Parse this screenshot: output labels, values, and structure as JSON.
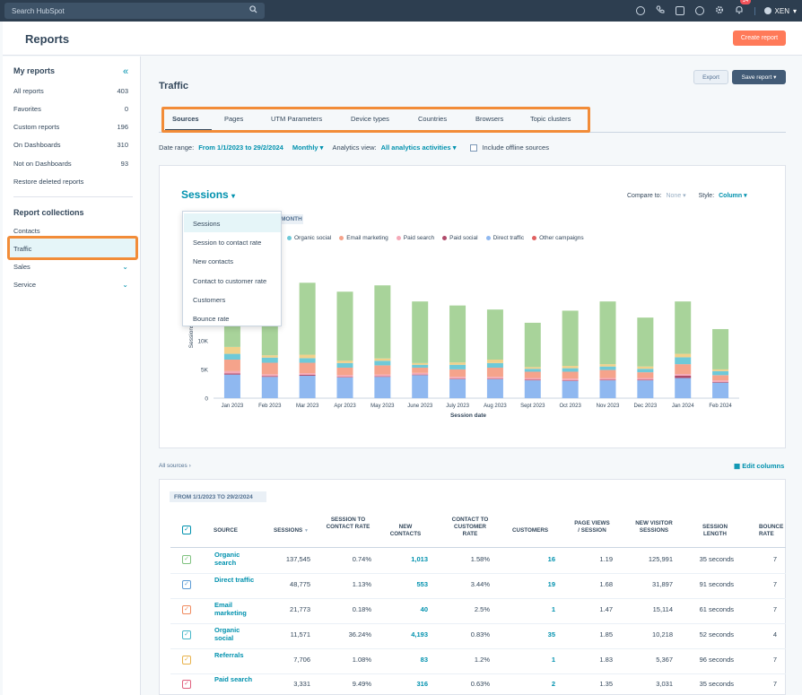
{
  "topnav": {
    "search_placeholder": "Search HubSpot",
    "notifications_count": "14",
    "account_name": "XEN"
  },
  "header": {
    "title": "Reports",
    "create_label": "Create report"
  },
  "sidebar": {
    "my_reports_title": "My reports",
    "items": [
      {
        "label": "All reports",
        "count": "403"
      },
      {
        "label": "Favorites",
        "count": "0"
      },
      {
        "label": "Custom reports",
        "count": "196"
      },
      {
        "label": "On Dashboards",
        "count": "310"
      },
      {
        "label": "Not on Dashboards",
        "count": "93"
      },
      {
        "label": "Restore deleted reports",
        "count": ""
      }
    ],
    "collections_title": "Report collections",
    "collections": [
      {
        "label": "Contacts"
      },
      {
        "label": "Traffic"
      },
      {
        "label": "Sales"
      },
      {
        "label": "Service"
      }
    ]
  },
  "main": {
    "title": "Traffic",
    "export_label": "Export",
    "save_label": "Save report",
    "tabs": [
      "Sources",
      "Pages",
      "UTM Parameters",
      "Device types",
      "Countries",
      "Browsers",
      "Topic clusters"
    ],
    "filters": {
      "date_range_label": "Date range:",
      "date_range_value": "From 1/1/2023 to 29/2/2024",
      "frequency": "Monthly",
      "analytics_label": "Analytics view:",
      "analytics_value": "All analytics activities",
      "offline_label": "Include offline sources"
    }
  },
  "chart_controls": {
    "metric": "Sessions",
    "compare_label": "Compare to:",
    "compare_value": "None",
    "style_label": "Style:",
    "style_value": "Column",
    "period_chip": "MONTH",
    "dropdown_options": [
      "Sessions",
      "Session to contact rate",
      "New contacts",
      "Contact to customer rate",
      "Customers",
      "Bounce rate"
    ]
  },
  "chart_data": {
    "type": "bar",
    "stacked": true,
    "xlabel": "Session date",
    "ylabel": "Sessions",
    "yticks": [
      "0",
      "5K",
      "10K"
    ],
    "ylim": [
      0,
      21500
    ],
    "categories": [
      "Jan 2023",
      "Feb 2023",
      "Mar 2023",
      "Apr 2023",
      "May 2023",
      "June 2023",
      "July 2023",
      "Aug 2023",
      "Sept 2023",
      "Oct 2023",
      "Nov 2023",
      "Dec 2023",
      "Jan 2024",
      "Feb 2024"
    ],
    "series": [
      {
        "name": "Direct traffic",
        "color": "#8fb8f0",
        "values": [
          4100,
          3700,
          3900,
          3600,
          3700,
          4000,
          3300,
          3300,
          3100,
          3000,
          3100,
          3100,
          3500,
          2700
        ]
      },
      {
        "name": "Paid social",
        "color": "#b04a6a",
        "values": [
          200,
          150,
          150,
          100,
          100,
          100,
          100,
          100,
          100,
          100,
          100,
          100,
          400,
          100
        ]
      },
      {
        "name": "Paid search",
        "color": "#f5a9b8",
        "values": [
          400,
          300,
          300,
          300,
          300,
          300,
          300,
          300,
          300,
          300,
          300,
          300,
          300,
          300
        ]
      },
      {
        "name": "Email marketing",
        "color": "#f5a38b",
        "values": [
          2000,
          2000,
          1800,
          1300,
          1600,
          900,
          1300,
          1600,
          1100,
          1200,
          1400,
          1000,
          1700,
          900
        ]
      },
      {
        "name": "Organic social",
        "color": "#6ec9d8",
        "values": [
          1000,
          900,
          800,
          800,
          800,
          500,
          800,
          800,
          500,
          600,
          600,
          600,
          1200,
          700
        ]
      },
      {
        "name": "Other campaigns",
        "color": "#f1d08a",
        "values": [
          1200,
          400,
          600,
          400,
          400,
          300,
          400,
          600,
          300,
          400,
          400,
          400,
          600,
          300
        ]
      },
      {
        "name": "Organic search",
        "color": "#a8d39a",
        "values": [
          6400,
          11500,
          12500,
          12000,
          12700,
          10700,
          9900,
          8700,
          7700,
          9600,
          10900,
          8500,
          9100,
          7000
        ]
      }
    ]
  },
  "table": {
    "all_sources": "All sources",
    "edit_columns": "Edit columns",
    "range_chip": "FROM 1/1/2023 TO 29/2/2024",
    "headers": [
      "SOURCE",
      "SESSIONS",
      "SESSION TO CONTACT RATE",
      "NEW CONTACTS",
      "CONTACT TO CUSTOMER RATE",
      "CUSTOMERS",
      "PAGE VIEWS / SESSION",
      "NEW VISITOR SESSIONS",
      "SESSION LENGTH",
      "BOUNCE RATE"
    ],
    "rows": [
      {
        "source": "Organic search",
        "color": "#7fc27f",
        "sessions": "137,545",
        "s2c": "0.74%",
        "new_contacts": "1,013",
        "c2c": "1.58%",
        "customers": "16",
        "pvs": "1.19",
        "nvs": "125,991",
        "length": "35 seconds",
        "bounce": "7"
      },
      {
        "source": "Direct traffic",
        "color": "#5b9bd5",
        "sessions": "48,775",
        "s2c": "1.13%",
        "new_contacts": "553",
        "c2c": "3.44%",
        "customers": "19",
        "pvs": "1.68",
        "nvs": "31,897",
        "length": "91 seconds",
        "bounce": "7"
      },
      {
        "source": "Email marketing",
        "color": "#f08a5d",
        "sessions": "21,773",
        "s2c": "0.18%",
        "new_contacts": "40",
        "c2c": "2.5%",
        "customers": "1",
        "pvs": "1.47",
        "nvs": "15,114",
        "length": "61 seconds",
        "bounce": "7"
      },
      {
        "source": "Organic social",
        "color": "#45b6c8",
        "sessions": "11,571",
        "s2c": "36.24%",
        "new_contacts": "4,193",
        "c2c": "0.83%",
        "customers": "35",
        "pvs": "1.85",
        "nvs": "10,218",
        "length": "52 seconds",
        "bounce": "4"
      },
      {
        "source": "Referrals",
        "color": "#e8b24a",
        "sessions": "7,706",
        "s2c": "1.08%",
        "new_contacts": "83",
        "c2c": "1.2%",
        "customers": "1",
        "pvs": "1.83",
        "nvs": "5,367",
        "length": "96 seconds",
        "bounce": "7"
      },
      {
        "source": "Paid search",
        "color": "#e0607e",
        "sessions": "3,331",
        "s2c": "9.49%",
        "new_contacts": "316",
        "c2c": "0.63%",
        "customers": "2",
        "pvs": "1.35",
        "nvs": "3,031",
        "length": "35 seconds",
        "bounce": "7"
      }
    ]
  }
}
